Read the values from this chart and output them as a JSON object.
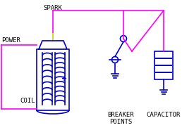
{
  "bg_color": "#ffffff",
  "blue": "#0000cc",
  "magenta": "#ff00ff",
  "yellow": "#cccc00",
  "text_color": "#000000",
  "lw": 1.2,
  "figsize": [
    2.75,
    1.85
  ],
  "dpi": 100,
  "labels": {
    "spark": "SPARK",
    "power": "POWER",
    "coil": "COIL",
    "breaker": "BREAKER\nPOINTS",
    "capacitor": "CAPACITOR"
  }
}
